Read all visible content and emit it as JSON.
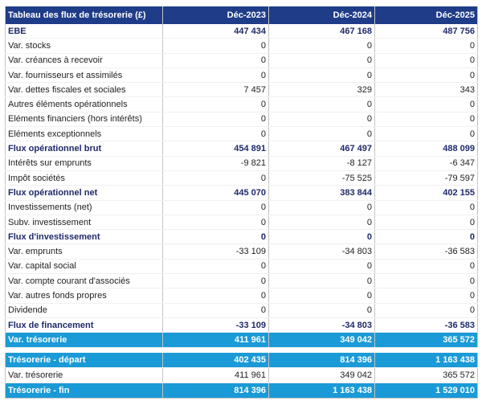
{
  "table": {
    "header": [
      "Tableau des flux de trésorerie (£)",
      "Déc-2023",
      "Déc-2024",
      "Déc-2025"
    ],
    "rows": [
      [
        "EBE",
        "447 434",
        "467 168",
        "487 756"
      ],
      [
        "Var. stocks",
        "0",
        "0",
        "0"
      ],
      [
        "Var. créances à recevoir",
        "0",
        "0",
        "0"
      ],
      [
        "Var. fournisseurs et assimilés",
        "0",
        "0",
        "0"
      ],
      [
        "Var. dettes fiscales et sociales",
        "7 457",
        "329",
        "343"
      ],
      [
        "Autres éléments opérationnels",
        "0",
        "0",
        "0"
      ],
      [
        "Eléments financiers (hors intérêts)",
        "0",
        "0",
        "0"
      ],
      [
        "Eléments exceptionnels",
        "0",
        "0",
        "0"
      ],
      [
        "Flux opérationnel brut",
        "454 891",
        "467 497",
        "488 099"
      ],
      [
        "Intérêts sur emprunts",
        "-9 821",
        "-8 127",
        "-6 347"
      ],
      [
        "Impôt sociétés",
        "0",
        "-75 525",
        "-79 597"
      ],
      [
        "Flux opérationnel net",
        "445 070",
        "383 844",
        "402 155"
      ],
      [
        "Investissements (net)",
        "0",
        "0",
        "0"
      ],
      [
        "Subv. investissement",
        "0",
        "0",
        "0"
      ],
      [
        "Flux d'investissement",
        "0",
        "0",
        "0"
      ],
      [
        "Var. emprunts",
        "-33 109",
        "-34 803",
        "-36 583"
      ],
      [
        "Var. capital social",
        "0",
        "0",
        "0"
      ],
      [
        "Var. compte courant d'associés",
        "0",
        "0",
        "0"
      ],
      [
        "Var. autres fonds propres",
        "0",
        "0",
        "0"
      ],
      [
        "Dividende",
        "0",
        "0",
        "0"
      ],
      [
        "Flux de financement",
        "-33 109",
        "-34 803",
        "-36 583"
      ],
      [
        "Var. trésorerie",
        "411 961",
        "349 042",
        "365 572"
      ],
      [
        "Trésorerie - départ",
        "402 435",
        "814 396",
        "1 163 438"
      ],
      [
        "Var. trésorerie",
        "411 961",
        "349 042",
        "365 572"
      ],
      [
        "Trésorerie - fin",
        "814 396",
        "1 163 438",
        "1 529 010"
      ]
    ]
  }
}
